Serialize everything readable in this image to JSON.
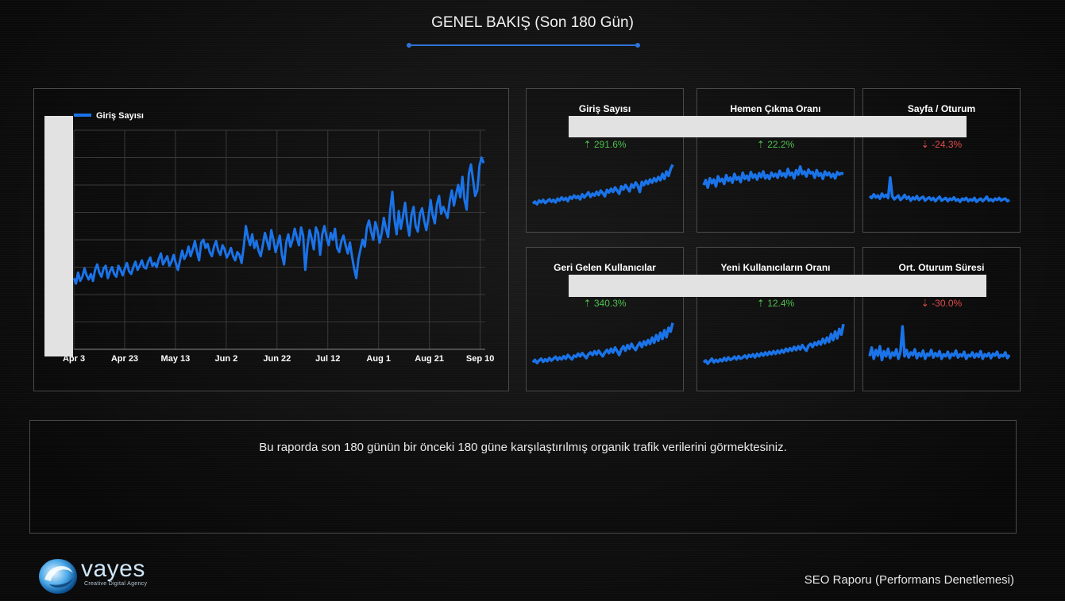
{
  "page": {
    "title": "GENEL BAKIŞ (Son 180 Gün)",
    "description": "Bu raporda son 180 günün bir önceki 180 güne karşılaştırılmış organik trafik verilerini görmektesiniz.",
    "footer": "SEO Raporu (Performans Denetlemesi)"
  },
  "logo": {
    "word": "vayes",
    "tagline": "Creative  Digital Agency"
  },
  "colors": {
    "accent": "#1a73e8",
    "up": "#4cc04c",
    "down": "#e24a4a",
    "background": "#0c0c0c"
  },
  "chart_data": [
    {
      "type": "line",
      "title": "",
      "legend": [
        "Giriş Sayısı"
      ],
      "legend_position": "top-left",
      "grid": true,
      "x_ticks": [
        "Apr 3",
        "Apr 23",
        "May 13",
        "Jun 2",
        "Jun 22",
        "Jul 12",
        "Aug 1",
        "Aug 21",
        "Sep 10"
      ],
      "series": [
        {
          "name": "Giriş Sayısı",
          "values": [
            5.2,
            4.8,
            5.6,
            5.0,
            5.3,
            5.9,
            5.4,
            5.1,
            5.5,
            5.0,
            5.8,
            6.2,
            5.6,
            5.3,
            5.9,
            6.1,
            5.2,
            5.7,
            6.0,
            5.5,
            5.3,
            6.1,
            5.8,
            5.4,
            5.9,
            6.3,
            5.7,
            5.5,
            6.0,
            6.4,
            5.8,
            6.1,
            6.5,
            6.0,
            5.9,
            6.4,
            6.7,
            6.1,
            6.3,
            6.0,
            6.6,
            7.0,
            6.2,
            6.5,
            6.8,
            6.1,
            6.4,
            6.9,
            6.3,
            5.8,
            6.5,
            7.2,
            6.6,
            6.9,
            7.5,
            6.8,
            7.3,
            7.9,
            7.1,
            6.5,
            7.8,
            8.0,
            7.4,
            7.7,
            7.1,
            6.8,
            7.5,
            7.9,
            7.2,
            6.9,
            7.6,
            7.3,
            6.7,
            7.0,
            7.4,
            6.8,
            6.5,
            7.1,
            6.9,
            6.3,
            7.5,
            9.0,
            8.2,
            7.6,
            8.4,
            7.4,
            7.9,
            7.2,
            6.8,
            7.6,
            8.5,
            7.9,
            7.3,
            8.7,
            8.0,
            7.1,
            7.7,
            8.3,
            6.9,
            6.2,
            7.8,
            8.4,
            7.5,
            8.0,
            8.8,
            8.2,
            7.6,
            8.9,
            8.3,
            5.8,
            7.5,
            8.7,
            8.1,
            7.3,
            8.9,
            8.5,
            6.9,
            8.4,
            9.0,
            8.2,
            7.6,
            8.5,
            8.0,
            8.8,
            7.4,
            7.1,
            7.9,
            8.3,
            7.6,
            7.0,
            7.8,
            6.8,
            5.9,
            5.2,
            6.6,
            7.3,
            8.0,
            7.5,
            8.9,
            9.4,
            8.6,
            8.0,
            9.3,
            8.7,
            7.8,
            8.5,
            9.6,
            8.8,
            8.2,
            10.2,
            11.5,
            9.5,
            8.4,
            10.1,
            8.8,
            9.7,
            10.7,
            9.2,
            8.3,
            9.8,
            10.4,
            9.0,
            8.6,
            9.9,
            10.3,
            9.4,
            8.7,
            9.6,
            10.9,
            9.8,
            9.2,
            10.6,
            11.2,
            9.9,
            10.4,
            10.0,
            9.6,
            10.8,
            11.6,
            10.5,
            11.3,
            12.0,
            11.1,
            12.6,
            10.9,
            10.2,
            12.8,
            13.5,
            12.4,
            11.2,
            11.6,
            13.4,
            14.0,
            13.6
          ]
        }
      ]
    },
    {
      "type": "line",
      "title": "Giriş Sayısı",
      "change": "291.6%",
      "direction": "up",
      "values": [
        2.0,
        2.3,
        1.9,
        2.5,
        2.2,
        2.6,
        2.1,
        2.4,
        2.7,
        2.3,
        2.6,
        2.2,
        2.8,
        2.5,
        3.0,
        2.6,
        2.9,
        2.4,
        3.1,
        2.8,
        3.3,
        2.9,
        3.2,
        2.7,
        3.5,
        3.0,
        3.4,
        3.8,
        3.1,
        3.6,
        3.3,
        3.9,
        3.4,
        4.1,
        3.7,
        3.2,
        4.2,
        3.8,
        4.4,
        3.9,
        4.6,
        4.1,
        3.6,
        4.8,
        4.3,
        5.0,
        4.5,
        4.0,
        5.1,
        4.6,
        5.4,
        4.9,
        3.9,
        5.5,
        5.0,
        5.7,
        5.2,
        5.9,
        5.4,
        6.1,
        5.6,
        6.3,
        5.8,
        6.8,
        6.0,
        7.2,
        6.5,
        7.6,
        8.3
      ]
    },
    {
      "type": "line",
      "title": "Hemen Çıkma Oranı",
      "change": "22.2%",
      "direction": "up",
      "values": [
        5.0,
        5.8,
        4.6,
        6.1,
        5.3,
        5.9,
        4.8,
        6.4,
        5.6,
        6.0,
        5.2,
        6.6,
        5.7,
        6.2,
        5.4,
        6.8,
        5.9,
        6.3,
        5.5,
        7.0,
        6.0,
        6.5,
        5.8,
        7.1,
        6.2,
        6.7,
        5.9,
        6.9,
        6.3,
        7.2,
        6.1,
        6.6,
        6.0,
        7.0,
        6.4,
        6.8,
        6.2,
        7.3,
        6.5,
        6.9,
        6.3,
        7.6,
        6.6,
        7.0,
        6.1,
        7.4,
        6.7,
        8.0,
        6.8,
        7.2,
        6.4,
        7.5,
        6.9,
        7.1,
        6.2,
        7.4,
        6.5,
        6.9,
        6.0,
        7.2,
        6.6,
        7.0,
        6.3,
        6.8,
        6.1,
        7.1,
        6.7,
        6.9,
        6.8
      ]
    },
    {
      "type": "line",
      "title": "Sayfa / Oturum",
      "change": "-24.3%",
      "direction": "down",
      "values": [
        3.2,
        2.9,
        3.5,
        3.0,
        3.3,
        2.8,
        3.6,
        3.1,
        3.4,
        2.9,
        6.2,
        3.2,
        2.7,
        3.0,
        3.3,
        2.6,
        2.9,
        3.4,
        2.8,
        3.1,
        2.5,
        3.0,
        2.7,
        3.2,
        2.6,
        2.9,
        3.1,
        2.5,
        2.8,
        3.0,
        2.6,
        2.9,
        2.4,
        2.8,
        3.1,
        2.5,
        2.7,
        2.9,
        2.4,
        2.8,
        2.6,
        3.0,
        2.5,
        2.7,
        2.3,
        2.8,
        2.6,
        2.9,
        2.4,
        2.7,
        2.5,
        2.9,
        2.3,
        2.6,
        2.8,
        2.4,
        2.7,
        3.1,
        2.5,
        2.7,
        2.4,
        2.8,
        2.6,
        2.9,
        2.5,
        2.7,
        2.8,
        2.4,
        2.6
      ]
    },
    {
      "type": "line",
      "title": "Geri Gelen Kullanıcılar",
      "change": "340.3%",
      "direction": "up",
      "values": [
        2.0,
        2.4,
        1.9,
        2.3,
        2.6,
        2.1,
        2.5,
        2.2,
        2.7,
        2.3,
        2.6,
        2.9,
        2.4,
        2.8,
        2.5,
        3.0,
        2.6,
        3.2,
        2.8,
        2.5,
        3.1,
        2.9,
        3.4,
        3.0,
        3.5,
        3.1,
        2.7,
        3.3,
        3.6,
        3.2,
        3.8,
        3.3,
        3.9,
        3.4,
        3.0,
        3.6,
        4.0,
        3.5,
        4.2,
        3.6,
        4.4,
        3.8,
        3.2,
        4.1,
        4.6,
        3.9,
        4.8,
        4.2,
        5.0,
        4.4,
        4.0,
        4.7,
        5.2,
        4.5,
        5.4,
        4.8,
        5.6,
        5.0,
        6.0,
        5.2,
        6.4,
        5.5,
        6.8,
        5.8,
        7.2,
        6.1,
        7.6,
        7.0,
        8.4
      ]
    },
    {
      "type": "line",
      "title": "Yeni Kullanıcıların Oranı",
      "change": "12.4%",
      "direction": "up",
      "values": [
        2.0,
        2.3,
        1.8,
        2.2,
        2.6,
        2.0,
        2.4,
        2.1,
        2.5,
        2.2,
        2.7,
        2.3,
        2.8,
        2.4,
        2.6,
        2.9,
        2.5,
        3.0,
        2.6,
        2.8,
        3.1,
        2.7,
        3.2,
        2.9,
        3.3,
        2.8,
        3.4,
        3.0,
        3.5,
        3.1,
        3.6,
        3.2,
        3.7,
        3.3,
        3.8,
        3.4,
        3.9,
        3.5,
        4.0,
        3.6,
        4.2,
        3.8,
        4.3,
        3.9,
        4.5,
        4.0,
        4.6,
        4.1,
        4.8,
        4.3,
        3.9,
        4.7,
        5.0,
        4.5,
        5.2,
        4.8,
        5.4,
        4.9,
        5.8,
        5.1,
        6.0,
        5.3,
        6.6,
        5.6,
        7.0,
        5.9,
        7.4,
        6.5,
        8.2
      ]
    },
    {
      "type": "line",
      "title": "Ort. Oturum Süresi",
      "change": "-30.0%",
      "direction": "down",
      "values": [
        3.0,
        4.4,
        2.6,
        4.0,
        3.1,
        4.6,
        2.4,
        3.8,
        3.0,
        4.2,
        2.7,
        3.6,
        3.1,
        4.1,
        2.6,
        3.7,
        7.8,
        3.0,
        4.0,
        2.8,
        3.6,
        3.2,
        4.1,
        2.7,
        3.5,
        3.0,
        3.9,
        2.6,
        3.4,
        3.1,
        4.0,
        2.8,
        3.5,
        3.0,
        3.8,
        2.6,
        3.3,
        3.0,
        3.7,
        2.7,
        3.4,
        3.1,
        3.9,
        2.8,
        3.3,
        3.0,
        3.7,
        2.6,
        3.2,
        3.0,
        3.6,
        2.8,
        3.4,
        2.9,
        3.8,
        2.6,
        3.3,
        3.0,
        3.5,
        2.7,
        3.4,
        3.1,
        3.7,
        2.8,
        3.2,
        3.0,
        3.6,
        2.7,
        3.2
      ]
    }
  ]
}
